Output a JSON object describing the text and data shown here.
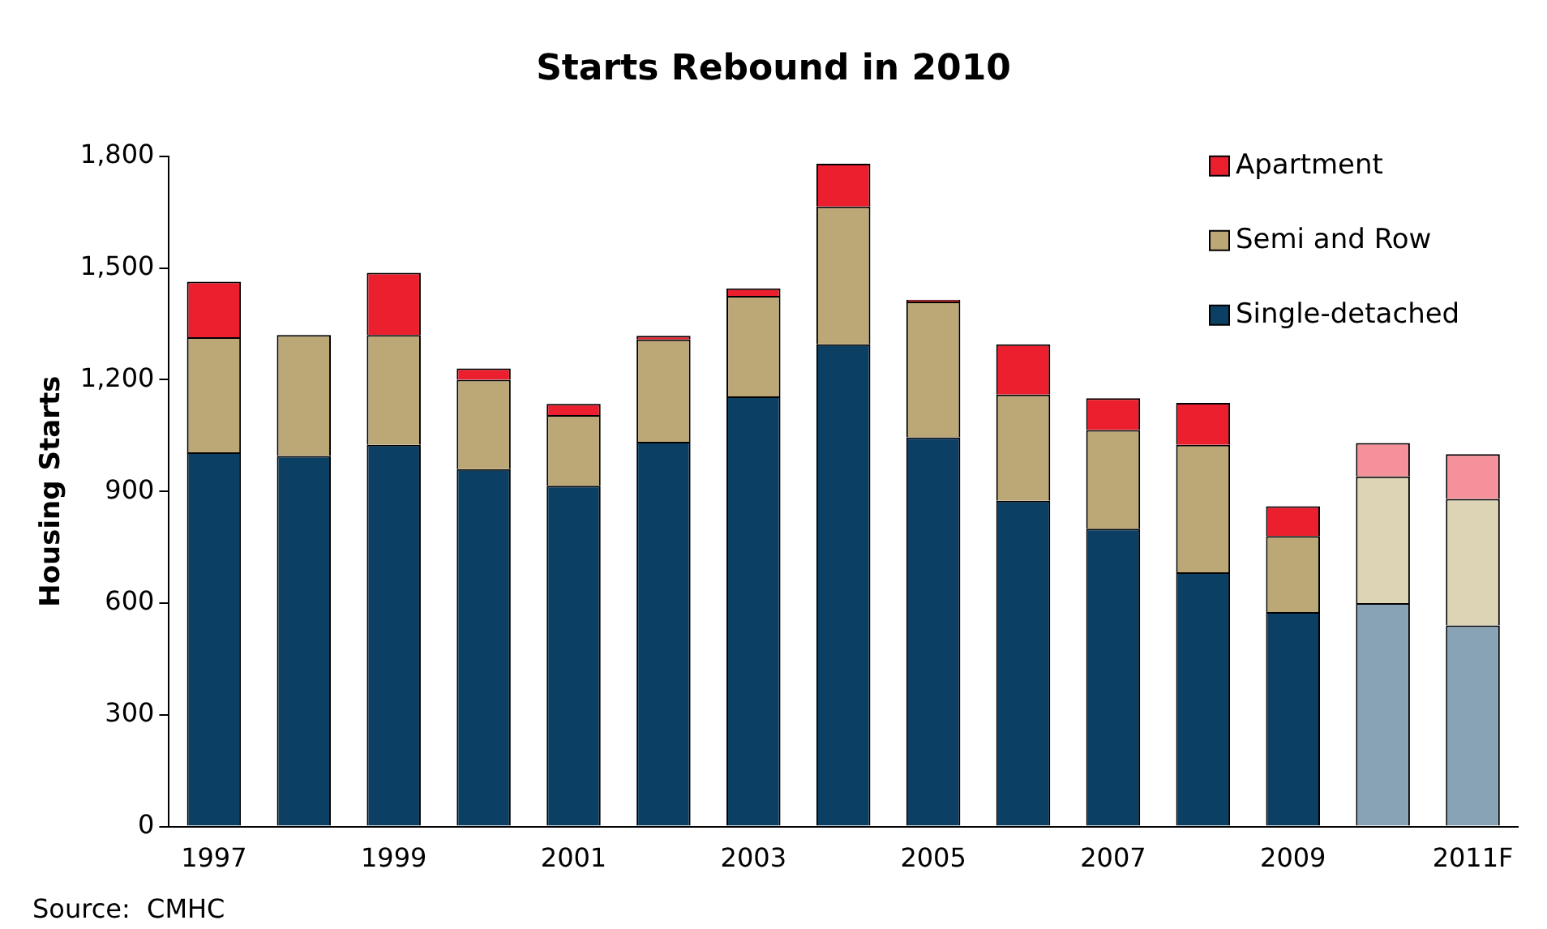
{
  "chart_data": {
    "type": "bar",
    "title": "Starts Rebound in 2010",
    "ylabel": "Housing Starts",
    "stacked": true,
    "legend": "top right",
    "grid": false,
    "categories": [
      "1997",
      null,
      "1999",
      null,
      "2001",
      null,
      "2003",
      null,
      "2005",
      null,
      "2007",
      null,
      "2009",
      null,
      "2011F"
    ],
    "ylim": [
      0,
      1800
    ],
    "yticks": [
      0,
      300,
      600,
      900,
      {
        "value": 1200,
        "label": "1,200"
      },
      {
        "value": 1500,
        "label": "1,500"
      },
      {
        "value": 1800,
        "label": "1,800"
      }
    ],
    "series": [
      {
        "name": "Single-detached",
        "color": "#0b3f63",
        "colors": [
          "#0b3f63",
          "#0b3f63",
          "#0b3f63",
          "#0b3f63",
          "#0b3f63",
          "#0b3f63",
          "#0b3f63",
          "#0b3f63",
          "#0b3f63",
          "#0b3f63",
          "#0b3f63",
          "#0b3f63",
          "#0b3f63",
          "#88a2b6",
          "#88a2b6"
        ],
        "values": [
          1005,
          995,
          1025,
          960,
          915,
          1033,
          1155,
          1295,
          1045,
          875,
          800,
          683,
          576,
          600,
          540
        ]
      },
      {
        "name": "Semi and Row",
        "color": "#bca876",
        "colors": [
          "#bca876",
          "#bca876",
          "#bca876",
          "#bca876",
          "#bca876",
          "#bca876",
          "#bca876",
          "#bca876",
          "#bca876",
          "#bca876",
          "#bca876",
          "#bca876",
          "#bca876",
          "#ddd3b5",
          "#ddd3b5"
        ],
        "values": [
          309,
          325,
          295,
          240,
          190,
          275,
          270,
          370,
          365,
          285,
          265,
          342,
          204,
          340,
          340
        ]
      },
      {
        "name": "Apartment",
        "color": "#ec1f2e",
        "colors": [
          "#ec1f2e",
          "#ec1f2e",
          "#ec1f2e",
          "#ec1f2e",
          "#ec1f2e",
          "#ec1f2e",
          "#ec1f2e",
          "#ec1f2e",
          "#ec1f2e",
          "#ec1f2e",
          "#ec1f2e",
          "#ec1f2e",
          "#ec1f2e",
          "#f4919a",
          "#f4919a"
        ],
        "values": [
          149,
          0,
          167,
          30,
          30,
          10,
          20,
          115,
          5,
          135,
          85,
          113,
          80,
          90,
          120
        ]
      }
    ],
    "annotations": [
      "Source:  CMHC"
    ]
  }
}
